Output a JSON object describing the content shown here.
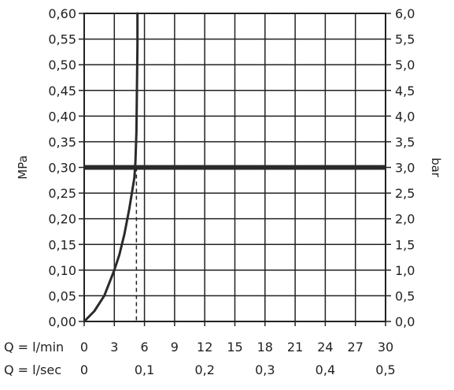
{
  "chart_data": {
    "type": "line",
    "title": "",
    "left_axis": {
      "label": "MPa",
      "ylim": [
        0,
        0.6
      ],
      "ticks": [
        0.0,
        0.05,
        0.1,
        0.15,
        0.2,
        0.25,
        0.3,
        0.35,
        0.4,
        0.45,
        0.5,
        0.55,
        0.6
      ],
      "tick_labels": [
        "0,00",
        "0,05",
        "0,10",
        "0,15",
        "0,20",
        "0,25",
        "0,30",
        "0,35",
        "0,40",
        "0,45",
        "0,50",
        "0,55",
        "0,60"
      ]
    },
    "right_axis": {
      "label": "bar",
      "ticks": [
        0.0,
        0.5,
        1.0,
        1.5,
        2.0,
        2.5,
        3.0,
        3.5,
        4.0,
        4.5,
        5.0,
        5.5,
        6.0
      ],
      "tick_labels": [
        "0,0",
        "0,5",
        "1,0",
        "1,5",
        "2,0",
        "2,5",
        "3,0",
        "3,5",
        "4,0",
        "4,5",
        "5,0",
        "5,5",
        "6,0"
      ]
    },
    "x_axis_lmin": {
      "label": "Q = l/min",
      "xlim": [
        0,
        30
      ],
      "ticks": [
        0,
        3,
        6,
        9,
        12,
        15,
        18,
        21,
        24,
        27,
        30
      ],
      "tick_labels": [
        "0",
        "3",
        "6",
        "9",
        "12",
        "15",
        "18",
        "21",
        "24",
        "27",
        "30"
      ]
    },
    "x_axis_lsec": {
      "label": "Q = l/sec",
      "ticks": [
        0,
        0.1,
        0.2,
        0.3,
        0.4,
        0.5
      ],
      "tick_labels": [
        "0",
        "0,1",
        "0,2",
        "0,3",
        "0,4",
        "0,5"
      ]
    },
    "grid": true,
    "series": [
      {
        "x": [
          0,
          1,
          2,
          3,
          3.5,
          4,
          4.5,
          5,
          5.1,
          5.2,
          5.25,
          5.3,
          5.3
        ],
        "y": [
          0,
          0.02,
          0.05,
          0.1,
          0.13,
          0.17,
          0.22,
          0.28,
          0.31,
          0.37,
          0.45,
          0.54,
          0.6
        ]
      }
    ],
    "reference_line": {
      "y": 0.3
    },
    "dashed_drop_x": 5.2
  }
}
